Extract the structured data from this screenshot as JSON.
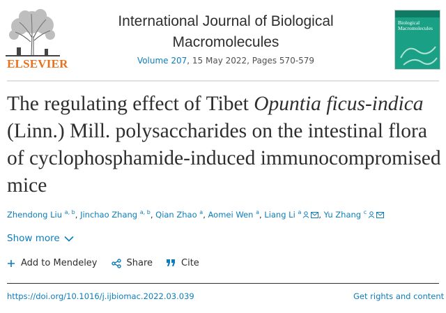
{
  "publisher": {
    "name": "ELSEVIER"
  },
  "journal": {
    "title": "International Journal of Biological Macromolecules",
    "volume_link": "Volume 207",
    "issue_info": ", 15 May 2022, Pages 570-579",
    "cover_title": "Biological Macromolecules"
  },
  "article": {
    "title_part1": "The regulating effect of Tibet ",
    "title_italic": "Opuntia ficus-indica",
    "title_part2": " (Linn.) Mill. polysaccharides on the intestinal flora of cyclophosphamide-induced immunocompromised mice"
  },
  "authors": [
    {
      "name": "Zhendong Liu",
      "affil": "a, b"
    },
    {
      "name": "Jinchao Zhang",
      "affil": "a, b"
    },
    {
      "name": "Qian Zhao",
      "affil": "a"
    },
    {
      "name": "Aomei Wen",
      "affil": "a"
    },
    {
      "name": "Liang Li",
      "affil": "a"
    },
    {
      "name": "Yu Zhang",
      "affil": "c"
    }
  ],
  "show_more": "Show more",
  "actions": {
    "mendeley": "Add to Mendeley",
    "share": "Share",
    "cite": "Cite"
  },
  "footer": {
    "doi": "https://doi.org/10.1016/j.ijbiomac.2022.03.039",
    "rights": "Get rights and content"
  },
  "colors": {
    "link": "#0c7dbb",
    "elsevier_orange": "#e9711c",
    "text": "#2e2e2e"
  }
}
